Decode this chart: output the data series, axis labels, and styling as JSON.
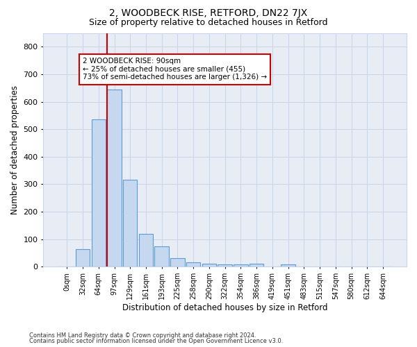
{
  "title": "2, WOODBECK RISE, RETFORD, DN22 7JX",
  "subtitle": "Size of property relative to detached houses in Retford",
  "xlabel": "Distribution of detached houses by size in Retford",
  "ylabel": "Number of detached properties",
  "footnote1": "Contains HM Land Registry data © Crown copyright and database right 2024.",
  "footnote2": "Contains public sector information licensed under the Open Government Licence v3.0.",
  "bar_labels": [
    "0sqm",
    "32sqm",
    "64sqm",
    "97sqm",
    "129sqm",
    "161sqm",
    "193sqm",
    "225sqm",
    "258sqm",
    "290sqm",
    "322sqm",
    "354sqm",
    "386sqm",
    "419sqm",
    "451sqm",
    "483sqm",
    "515sqm",
    "547sqm",
    "580sqm",
    "612sqm",
    "644sqm"
  ],
  "bar_values": [
    0,
    65,
    535,
    645,
    315,
    120,
    75,
    30,
    17,
    10,
    8,
    8,
    10,
    0,
    8,
    0,
    0,
    0,
    0,
    0,
    0
  ],
  "bar_color": "#c5d8f0",
  "bar_edge_color": "#5b9bd5",
  "grid_color": "#c8d4e8",
  "plot_bg_color": "#e8edf5",
  "figure_bg_color": "#ffffff",
  "vline_x_index": 3,
  "vline_color": "#cc0000",
  "annotation_text": "2 WOODBECK RISE: 90sqm\n← 25% of detached houses are smaller (455)\n73% of semi-detached houses are larger (1,326) →",
  "annotation_box_facecolor": "#ffffff",
  "annotation_box_edgecolor": "#cc0000",
  "ylim": [
    0,
    850
  ],
  "yticks": [
    0,
    100,
    200,
    300,
    400,
    500,
    600,
    700,
    800
  ],
  "title_fontsize": 10,
  "subtitle_fontsize": 9,
  "ylabel_fontsize": 8.5,
  "xlabel_fontsize": 8.5,
  "tick_fontsize": 8,
  "xtick_fontsize": 7,
  "footnote_fontsize": 6,
  "annot_fontsize": 7.5
}
